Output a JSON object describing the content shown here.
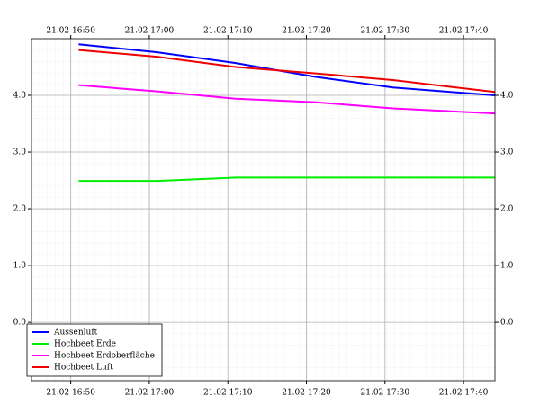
{
  "chart_data": {
    "type": "line",
    "x": [
      "21.02 16:51",
      "21.02 17:01",
      "21.02 17:11",
      "21.02 17:21",
      "21.02 17:31",
      "21.02 17:44"
    ],
    "series": [
      {
        "name": "Aussenluft",
        "color": "#0000ff",
        "values": [
          4.9,
          4.76,
          4.57,
          4.33,
          4.14,
          4.0
        ]
      },
      {
        "name": "Hochbeet Erde",
        "color": "#00ee00",
        "values": [
          2.49,
          2.49,
          2.55,
          2.55,
          2.55,
          2.55
        ]
      },
      {
        "name": "Hochbeet Erdoberfläche",
        "color": "#ff00ff",
        "values": [
          4.18,
          4.07,
          3.94,
          3.88,
          3.77,
          3.68
        ]
      },
      {
        "name": "Hochbeet Luft",
        "color": "#ee0000",
        "values": [
          4.8,
          4.68,
          4.5,
          4.39,
          4.27,
          4.06
        ]
      }
    ],
    "xlim": [
      "21.02 16:45",
      "21.02 17:44"
    ],
    "xticks": [
      "21.02 16:50",
      "21.02 17:00",
      "21.02 17:10",
      "21.02 17:20",
      "21.02 17:30",
      "21.02 17:40"
    ],
    "ylim": [
      -1.03,
      5.0
    ],
    "yticks": [
      {
        "value": 0,
        "label": "0.0"
      },
      {
        "value": 1,
        "label": "1.0"
      },
      {
        "value": 2,
        "label": "2.0"
      },
      {
        "value": 3,
        "label": "3.0"
      },
      {
        "value": 4,
        "label": "4.0"
      }
    ],
    "grid": true,
    "legend": "lower left"
  }
}
